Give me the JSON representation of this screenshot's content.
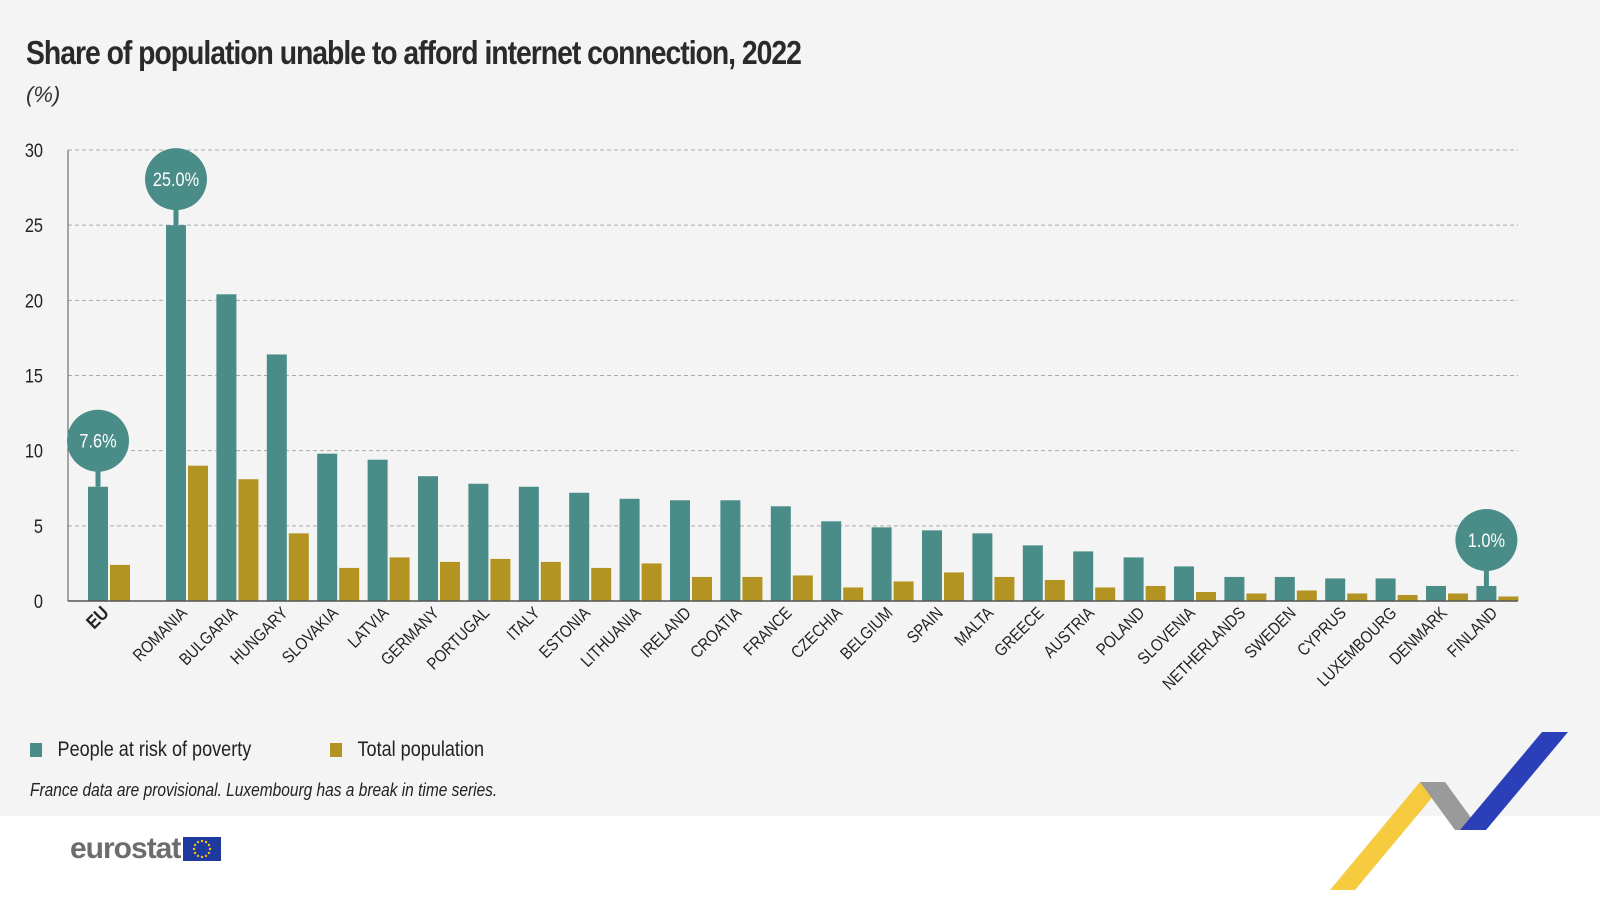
{
  "header": {
    "title": "Share of population unable to afford internet connection, 2022",
    "unit": "(%)"
  },
  "colors": {
    "poverty": "#4a8c88",
    "total": "#b39322",
    "background": "#f4f4f4"
  },
  "chart_data": {
    "type": "bar",
    "title": "Share of population unable to afford internet connection, 2022",
    "ylabel": "(%)",
    "ylim": [
      0,
      30
    ],
    "yticks": [
      0,
      5,
      10,
      15,
      20,
      25,
      30
    ],
    "grid": true,
    "legend_placement": "bottom-left",
    "categories": [
      "EU",
      "ROMANIA",
      "BULGARIA",
      "HUNGARY",
      "SLOVAKIA",
      "LATVIA",
      "GERMANY",
      "PORTUGAL",
      "ITALY",
      "ESTONIA",
      "LITHUANIA",
      "IRELAND",
      "CROATIA",
      "FRANCE",
      "CZECHIA",
      "BELGIUM",
      "SPAIN",
      "MALTA",
      "GREECE",
      "AUSTRIA",
      "POLAND",
      "SLOVENIA",
      "NETHERLANDS",
      "SWEDEN",
      "CYPRUS",
      "LUXEMBOURG",
      "DENMARK",
      "FINLAND"
    ],
    "series": [
      {
        "name": "People at risk of poverty",
        "values": [
          7.6,
          25.0,
          20.4,
          16.4,
          9.8,
          9.4,
          8.3,
          7.8,
          7.6,
          7.2,
          6.8,
          6.7,
          6.7,
          6.3,
          5.3,
          4.9,
          4.7,
          4.5,
          3.7,
          3.3,
          2.9,
          2.3,
          1.6,
          1.6,
          1.5,
          1.5,
          1.0,
          1.0
        ]
      },
      {
        "name": "Total population",
        "values": [
          2.4,
          9.0,
          8.1,
          4.5,
          2.2,
          2.9,
          2.6,
          2.8,
          2.6,
          2.2,
          2.5,
          1.6,
          1.6,
          1.7,
          0.9,
          1.3,
          1.9,
          1.6,
          1.4,
          0.9,
          1.0,
          0.6,
          0.5,
          0.7,
          0.5,
          0.4,
          0.5,
          0.3
        ]
      }
    ],
    "annotations": [
      {
        "category": "EU",
        "label": "7.6%"
      },
      {
        "category": "ROMANIA",
        "label": "25.0%"
      },
      {
        "category": "FINLAND",
        "label": "1.0%"
      }
    ]
  },
  "legend": {
    "items": [
      "People at risk of poverty",
      "Total population"
    ]
  },
  "footnote": "France data are provisional. Luxembourg has a break in time series.",
  "footer": {
    "logo": "eurostat"
  }
}
